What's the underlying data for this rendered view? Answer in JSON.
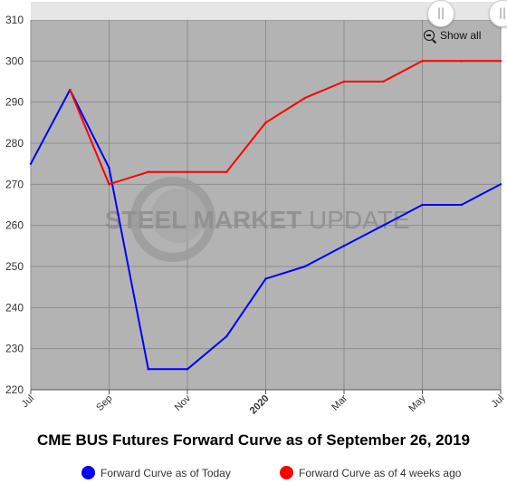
{
  "chart_data": {
    "type": "line",
    "title": "CME BUS Futures Forward Curve as of September 26, 2019",
    "xlabel": "",
    "ylabel": "",
    "ylim": [
      220,
      310
    ],
    "y_ticks": [
      220,
      230,
      240,
      250,
      260,
      270,
      280,
      290,
      300,
      310
    ],
    "x_ticks": [
      {
        "label": "Jul",
        "month_index": 0,
        "bold": false
      },
      {
        "label": "Sep",
        "month_index": 2,
        "bold": false
      },
      {
        "label": "Nov",
        "month_index": 4,
        "bold": false
      },
      {
        "label": "2020",
        "month_index": 6,
        "bold": true
      },
      {
        "label": "Mar",
        "month_index": 8,
        "bold": false
      },
      {
        "label": "May",
        "month_index": 10,
        "bold": false
      },
      {
        "label": "Jul",
        "month_index": 12,
        "bold": false
      }
    ],
    "xlim": [
      "2019-07",
      "2020-07"
    ],
    "grid": true,
    "legend_position": "bottom",
    "series": [
      {
        "name": "Forward Curve as of Today",
        "color": "#0000ff",
        "x": [
          "2019-07",
          "2019-08",
          "2019-09",
          "2019-10",
          "2019-11",
          "2019-12",
          "2020-01",
          "2020-02",
          "2020-03",
          "2020-04",
          "2020-05",
          "2020-06",
          "2020-07"
        ],
        "values": [
          275,
          293,
          274,
          225,
          225,
          233,
          247,
          250,
          255,
          260,
          265,
          265,
          270
        ]
      },
      {
        "name": "Forward Curve as of 4 weeks ago",
        "color": "#ff0000",
        "x": [
          "2019-08",
          "2019-09",
          "2019-10",
          "2019-11",
          "2019-12",
          "2020-01",
          "2020-02",
          "2020-03",
          "2020-04",
          "2020-05",
          "2020-06",
          "2020-07"
        ],
        "values": [
          293,
          270,
          273,
          273,
          273,
          285,
          291,
          295,
          295,
          300,
          300,
          300
        ]
      }
    ]
  },
  "watermark": {
    "text_bold": "STEEL MARKET",
    "text_light": " UPDATE"
  },
  "navigator": {
    "handle_glyph": "||"
  },
  "zoom": {
    "label": "Show all",
    "icon": "zoom-out-icon"
  },
  "colors": {
    "plot_background": "#b3b3b3",
    "grid": "#8c8c8c",
    "navigator": "#e6e6e6"
  }
}
